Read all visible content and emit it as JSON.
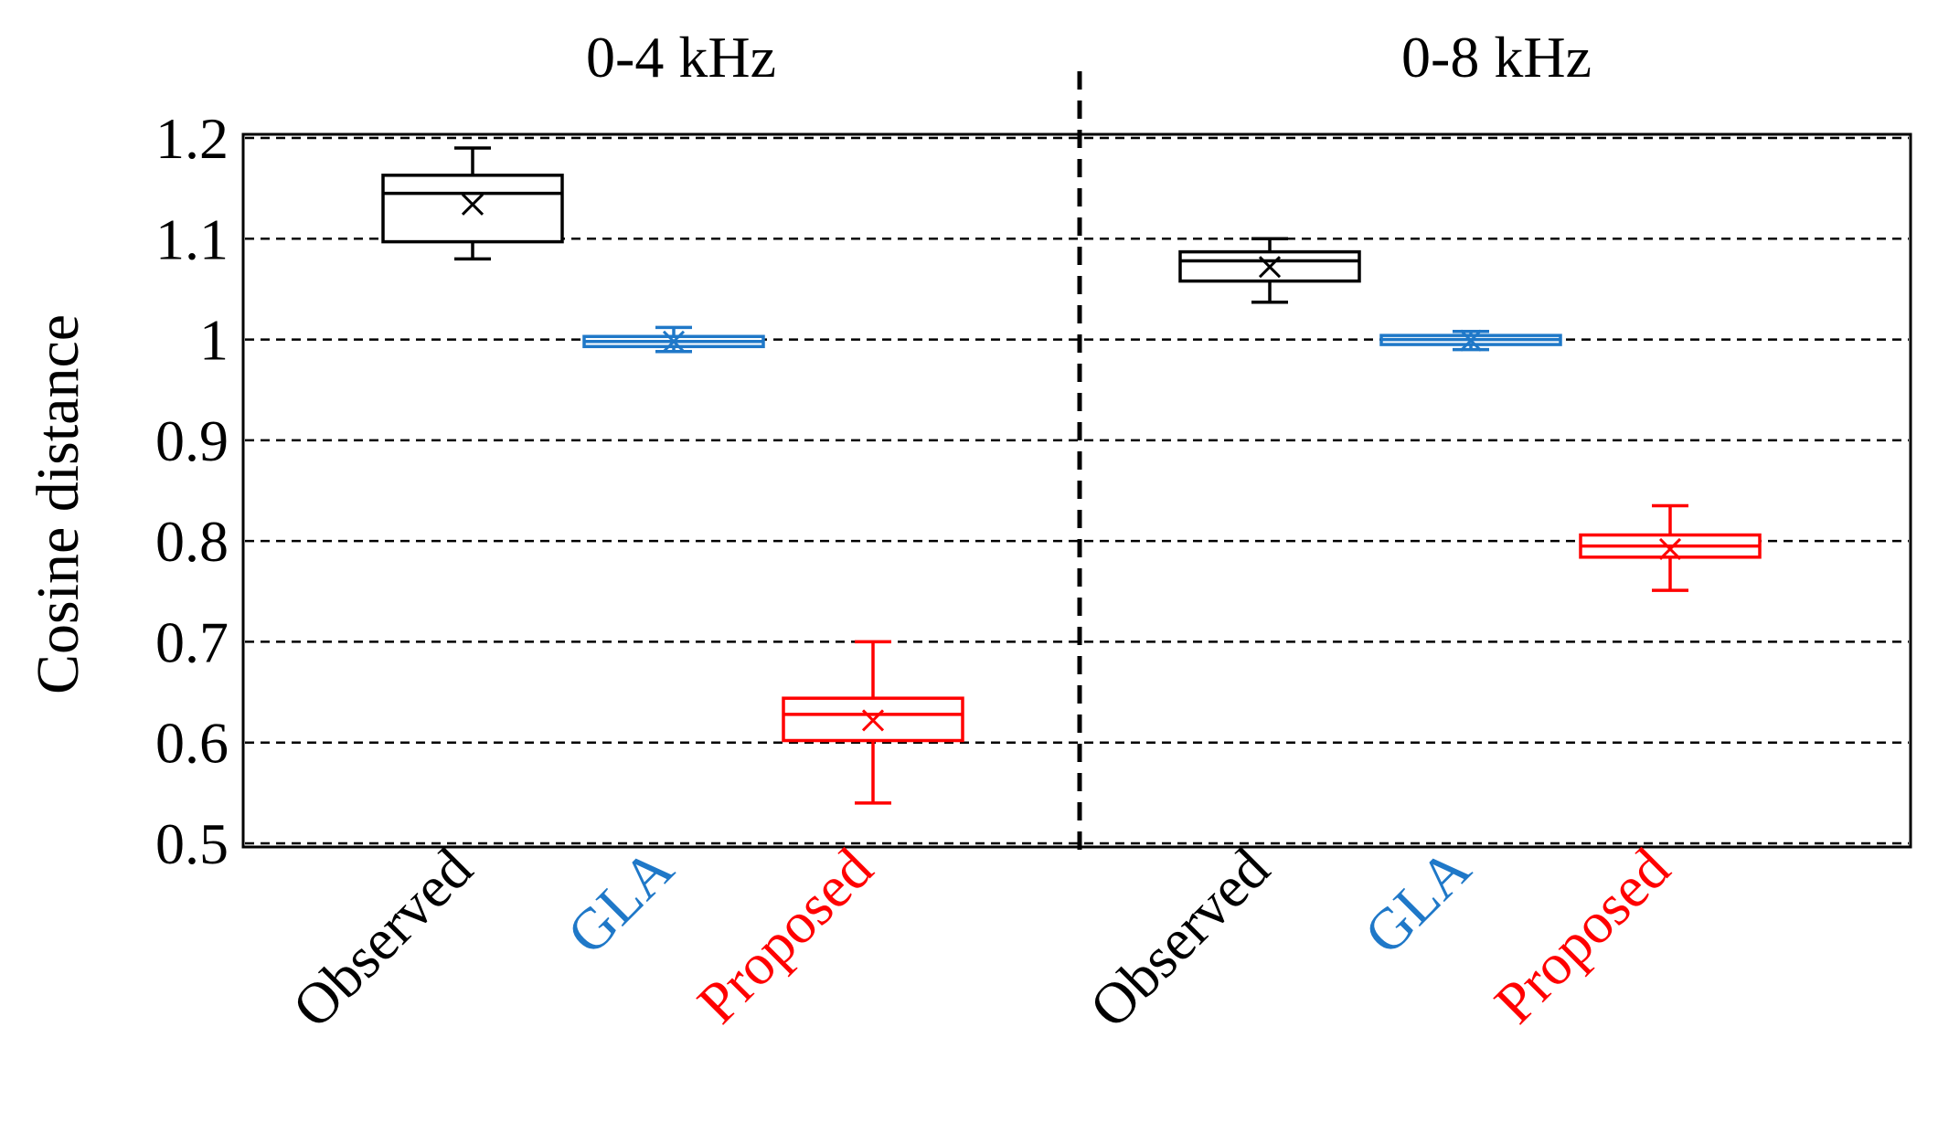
{
  "chart_data": {
    "type": "boxplot",
    "ylabel": "Cosine distance",
    "ylim": [
      0.5,
      1.2
    ],
    "yticks": [
      "0.5",
      "0.6",
      "0.7",
      "0.8",
      "0.9",
      "1",
      "1.1",
      "1.2"
    ],
    "grid": "horizontal dashed",
    "colors": {
      "Observed": "#000000",
      "GLA": "#1f78c8",
      "Proposed": "#ff0000"
    },
    "groups": [
      {
        "title": "0-4 kHz",
        "boxes": [
          {
            "label": "Observed",
            "min": 1.08,
            "q1": 1.097,
            "median": 1.145,
            "q3": 1.163,
            "max": 1.19,
            "mean": 1.134
          },
          {
            "label": "GLA",
            "min": 0.988,
            "q1": 0.993,
            "median": 0.998,
            "q3": 1.003,
            "max": 1.012,
            "mean": 0.998
          },
          {
            "label": "Proposed",
            "min": 0.54,
            "q1": 0.602,
            "median": 0.628,
            "q3": 0.644,
            "max": 0.7,
            "mean": 0.622
          }
        ]
      },
      {
        "title": "0-8 kHz",
        "boxes": [
          {
            "label": "Observed",
            "min": 1.037,
            "q1": 1.058,
            "median": 1.078,
            "q3": 1.087,
            "max": 1.1,
            "mean": 1.072
          },
          {
            "label": "GLA",
            "min": 0.99,
            "q1": 0.995,
            "median": 1.0,
            "q3": 1.004,
            "max": 1.008,
            "mean": 0.999
          },
          {
            "label": "Proposed",
            "min": 0.751,
            "q1": 0.784,
            "median": 0.795,
            "q3": 0.806,
            "max": 0.835,
            "mean": 0.792
          }
        ]
      }
    ]
  }
}
